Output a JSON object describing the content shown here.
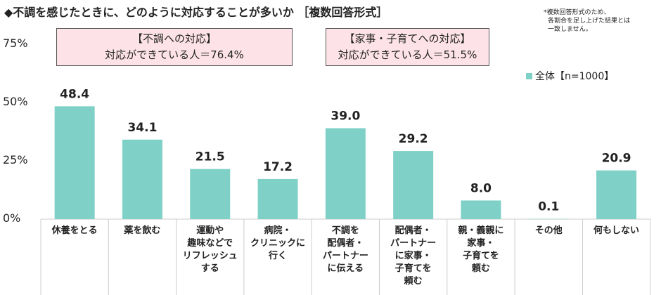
{
  "title": "◆不調を感じたときに、どのように対応することが多いか ［複数回答形式］",
  "note": [
    "*複数回答形式のため、",
    "各割合を足し上げた結果とは",
    "一致しません。"
  ],
  "callouts": [
    {
      "heading": "【不調への対応】",
      "text": "対応ができている人＝76.4%"
    },
    {
      "heading": "【家事・子育てへの対応】",
      "text": "対応ができている人＝51.5%"
    }
  ],
  "colors": {
    "bar": "#7fd1c7",
    "callout_bg": "#fde3e8"
  },
  "chart_data": {
    "type": "bar",
    "categories": [
      "休養をとる",
      "薬を飲む",
      "運動や趣味などでリフレッシュする",
      "病院・クリニックに行く",
      "不調を配偶者・パートナーに伝える",
      "配偶者・パートナーに家事・子育てを頼む",
      "親・義親に家事・子育てを頼む",
      "その他",
      "何もしない"
    ],
    "category_lines": [
      [
        "休養をとる"
      ],
      [
        "薬を飲む"
      ],
      [
        "運動や",
        "趣味などで",
        "リフレッシュ",
        "する"
      ],
      [
        "病院・",
        "クリニックに",
        "行く"
      ],
      [
        "不調を",
        "配偶者・",
        "パートナー",
        "に伝える"
      ],
      [
        "配偶者・",
        "パートナー",
        "に家事・",
        "子育てを",
        "頼む"
      ],
      [
        "親・義親に",
        "家事・",
        "子育てを",
        "頼む"
      ],
      [
        "その他"
      ],
      [
        "何もしない"
      ]
    ],
    "series": [
      {
        "name": "全体【n=1000】",
        "values": [
          48.4,
          34.1,
          21.5,
          17.2,
          39.0,
          29.2,
          8.0,
          0.1,
          20.9
        ]
      }
    ],
    "data_labels": [
      "48.4",
      "34.1",
      "21.5",
      "17.2",
      "39.0",
      "29.2",
      "8.0",
      "0.1",
      "20.9"
    ],
    "yticks": [
      "0%",
      "25%",
      "50%",
      "75%"
    ],
    "ytick_values": [
      0,
      25,
      50,
      75
    ],
    "ylim": [
      0,
      75
    ],
    "legend": "top-right",
    "grid": false
  }
}
